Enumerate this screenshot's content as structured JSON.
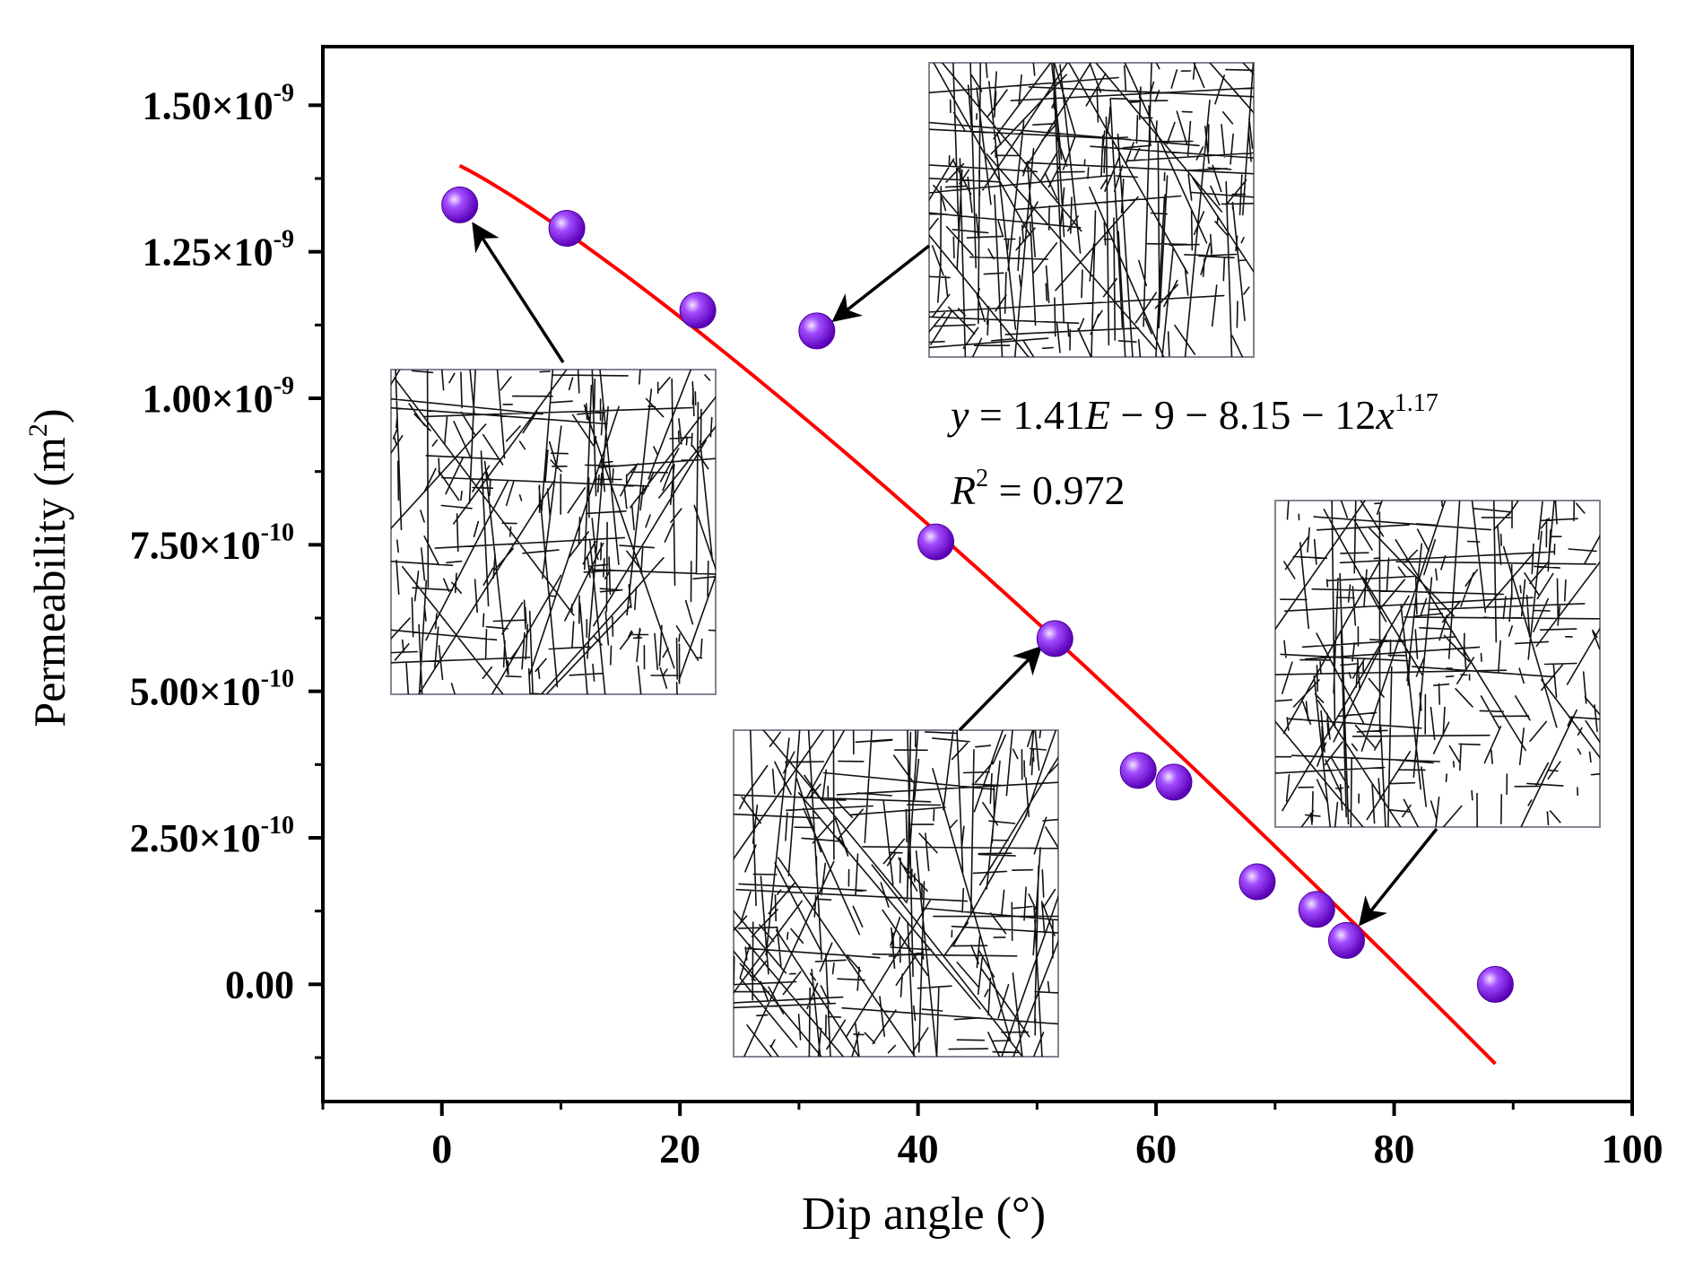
{
  "chart_data": {
    "type": "scatter",
    "xlabel": "Dip angle (°)",
    "ylabel_main": "Permeability (m",
    "ylabel_sup": "2",
    "ylabel_close": ")",
    "xlim": [
      -10,
      100
    ],
    "ylim": [
      -2e-10,
      1.6e-09
    ],
    "x_ticks": [
      0,
      20,
      40,
      60,
      80,
      100
    ],
    "x_tick_labels": [
      "0",
      "20",
      "40",
      "60",
      "80",
      "100"
    ],
    "y_ticks": [
      {
        "value": 1.5e-09,
        "mant": "1.50×10",
        "exp": "-9"
      },
      {
        "value": 1.25e-09,
        "mant": "1.25×10",
        "exp": "-9"
      },
      {
        "value": 1e-09,
        "mant": "1.00×10",
        "exp": "-9"
      },
      {
        "value": 7.5e-10,
        "mant": "7.50×10",
        "exp": "-10"
      },
      {
        "value": 5e-10,
        "mant": "5.00×10",
        "exp": "-10"
      },
      {
        "value": 2.5e-10,
        "mant": "2.50×10",
        "exp": "-10"
      },
      {
        "value": 0,
        "mant": "0.00",
        "exp": ""
      }
    ],
    "series": [
      {
        "points": [
          [
            1.5,
            1.33e-09
          ],
          [
            10.5,
            1.29e-09
          ],
          [
            21.5,
            1.15e-09
          ],
          [
            31.5,
            1.115e-09
          ],
          [
            41.5,
            7.55e-10
          ],
          [
            51.5,
            5.9e-10
          ],
          [
            58.5,
            3.65e-10
          ],
          [
            61.5,
            3.45e-10
          ],
          [
            68.5,
            1.75e-10
          ],
          [
            73.5,
            1.28e-10
          ],
          [
            76,
            7.5e-11
          ],
          [
            88.5,
            0
          ]
        ]
      },
      {
        "fit": {
          "a": 1.41e-09,
          "b": 8.15e-12,
          "p": 1.17,
          "x_from": 1.5,
          "x_to": 88.5
        }
      }
    ],
    "equation": {
      "line1": {
        "y": "y",
        "eq1": " = 1.41",
        "e": "E",
        "rest": " − 9 − 8.15 − 12",
        "x": "x",
        "exp": "1.17"
      },
      "line2": {
        "r": "R",
        "sup": "2",
        "rest": " = 0.972"
      }
    },
    "colors": {
      "marker": "#8a2be2",
      "marker_highlight": "#e6c8ff",
      "fit_line": "#ff0000"
    },
    "insets": [
      {
        "name": "fracture-network-dip-0",
        "point_index": 0,
        "seed": 11,
        "anchor_x": 10
      },
      {
        "name": "fracture-network-dip-30",
        "point_index": 3,
        "seed": 23,
        "anchor_x": 31.5
      },
      {
        "name": "fracture-network-dip-50",
        "point_index": 5,
        "seed": 37,
        "anchor_x": 50
      },
      {
        "name": "fracture-network-dip-75",
        "point_index": 10,
        "seed": 53,
        "anchor_x": 76
      }
    ]
  }
}
